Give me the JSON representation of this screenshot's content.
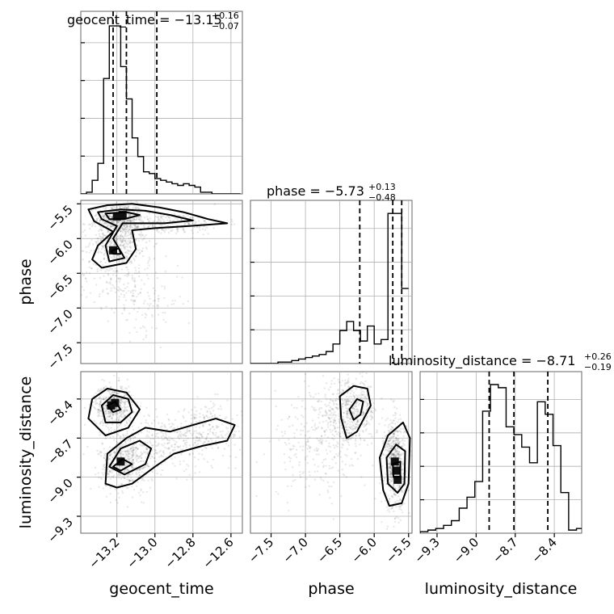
{
  "chart_data": {
    "type": "corner",
    "parameters": [
      "geocent_time",
      "phase",
      "luminosity_distance"
    ],
    "axes": {
      "geocent_time": {
        "label": "geocent_time",
        "range": [
          -13.39,
          -12.54
        ],
        "ticks": [
          -13.2,
          -13.0,
          -12.8,
          -12.6
        ],
        "tick_labels": [
          "−13.2",
          "−13.0",
          "−12.8",
          "−12.6"
        ]
      },
      "phase": {
        "label": "phase",
        "range": [
          -7.8,
          -5.45
        ],
        "ticks": [
          -7.5,
          -7.0,
          -6.5,
          -6.0,
          -5.5
        ],
        "tick_labels": [
          "−7.5",
          "−7.0",
          "−6.5",
          "−6.0",
          "−5.5"
        ]
      },
      "luminosity_distance": {
        "label": "luminosity_distance",
        "range": [
          -9.43,
          -8.19
        ],
        "ticks": [
          -9.3,
          -9.0,
          -8.7,
          -8.4
        ],
        "tick_labels": [
          "−9.3",
          "−9.0",
          "−8.7",
          "−8.4"
        ]
      }
    },
    "titles": [
      {
        "param": "geocent_time",
        "main": "geocent_time = −13.15",
        "plus": "+0.16",
        "minus": "−0.07"
      },
      {
        "param": "phase",
        "main": "phase = −5.73",
        "plus": "+0.13",
        "minus": "−0.48"
      },
      {
        "param": "luminosity_distance",
        "main": "luminosity_distance = −8.71",
        "plus": "+0.26",
        "minus": "−0.19"
      }
    ],
    "histograms": {
      "geocent_time": {
        "edges": [
          -13.39,
          -13.36,
          -13.33,
          -13.3,
          -13.27,
          -13.24,
          -13.21,
          -13.18,
          -13.15,
          -13.12,
          -13.09,
          -13.06,
          -13.03,
          -13.0,
          -12.97,
          -12.94,
          -12.91,
          -12.88,
          -12.85,
          -12.82,
          -12.79,
          -12.76,
          -12.73,
          -12.7,
          -12.67,
          -12.64,
          -12.61,
          -12.58,
          -12.55
        ],
        "counts": [
          0,
          1,
          8,
          18,
          68,
          99,
          99,
          75,
          56,
          33,
          22,
          13,
          12,
          9,
          8,
          7,
          6,
          5,
          6,
          5,
          4,
          1,
          1,
          0,
          0,
          0,
          0,
          0
        ],
        "quantiles": [
          -13.22,
          -13.15,
          -12.99
        ]
      },
      "phase": {
        "edges": [
          -7.8,
          -7.7,
          -7.6,
          -7.5,
          -7.4,
          -7.3,
          -7.2,
          -7.1,
          -7.0,
          -6.9,
          -6.8,
          -6.7,
          -6.6,
          -6.5,
          -6.4,
          -6.3,
          -6.2,
          -6.1,
          -6.0,
          -5.9,
          -5.8,
          -5.7,
          -5.6,
          -5.5
        ],
        "counts": [
          0,
          0,
          0,
          0,
          1,
          1,
          2,
          3,
          4,
          5,
          6,
          8,
          13,
          22,
          28,
          22,
          15,
          25,
          13,
          16,
          100,
          100,
          50
        ],
        "quantiles": [
          -6.21,
          -5.73,
          -5.6
        ]
      },
      "luminosity_distance": {
        "edges": [
          -9.43,
          -9.37,
          -9.31,
          -9.25,
          -9.19,
          -9.13,
          -9.07,
          -9.01,
          -8.95,
          -8.89,
          -8.83,
          -8.77,
          -8.71,
          -8.65,
          -8.59,
          -8.53,
          -8.47,
          -8.41,
          -8.35,
          -8.29,
          -8.23,
          -8.19
        ],
        "counts": [
          1,
          2,
          3,
          5,
          8,
          16,
          23,
          33,
          78,
          95,
          93,
          68,
          63,
          55,
          45,
          84,
          76,
          56,
          26,
          2,
          3
        ],
        "quantiles": [
          -8.9,
          -8.71,
          -8.45
        ]
      }
    },
    "densities": {
      "geocent_time__phase": {
        "clusters": [
          {
            "center": [
              -13.18,
              -5.7
            ],
            "spread": [
              0.06,
              0.1
            ],
            "weight": 0.35
          },
          {
            "center": [
              -13.2,
              -6.05
            ],
            "spread": [
              0.07,
              0.15
            ],
            "weight": 0.25
          },
          {
            "center": [
              -12.95,
              -5.78
            ],
            "spread": [
              0.16,
              0.08
            ],
            "weight": 0.2
          },
          {
            "center": [
              -13.2,
              -6.5
            ],
            "spread": [
              0.1,
              0.25
            ],
            "weight": 0.12
          },
          {
            "center": [
              -13.05,
              -6.9
            ],
            "spread": [
              0.1,
              0.25
            ],
            "weight": 0.08
          }
        ],
        "contours": [
          [
            [
              -13.35,
              -5.58
            ],
            [
              -13.25,
              -5.52
            ],
            [
              -13.12,
              -5.5
            ],
            [
              -12.98,
              -5.55
            ],
            [
              -12.85,
              -5.62
            ],
            [
              -12.72,
              -5.72
            ],
            [
              -12.62,
              -5.78
            ],
            [
              -12.82,
              -5.82
            ],
            [
              -13.0,
              -5.85
            ],
            [
              -13.12,
              -5.88
            ],
            [
              -13.1,
              -6.15
            ],
            [
              -13.15,
              -6.35
            ],
            [
              -13.28,
              -6.42
            ],
            [
              -13.33,
              -6.3
            ],
            [
              -13.3,
              -6.1
            ],
            [
              -13.22,
              -5.9
            ],
            [
              -13.32,
              -5.75
            ]
          ],
          [
            [
              -13.3,
              -5.62
            ],
            [
              -13.18,
              -5.58
            ],
            [
              -13.05,
              -5.6
            ],
            [
              -12.92,
              -5.66
            ],
            [
              -12.8,
              -5.74
            ],
            [
              -12.95,
              -5.78
            ],
            [
              -13.08,
              -5.78
            ],
            [
              -13.17,
              -5.78
            ],
            [
              -13.22,
              -6.0
            ],
            [
              -13.16,
              -6.28
            ],
            [
              -13.24,
              -6.33
            ],
            [
              -13.26,
              -6.1
            ],
            [
              -13.2,
              -5.82
            ],
            [
              -13.28,
              -5.72
            ]
          ],
          [
            [
              -13.26,
              -5.64
            ],
            [
              -13.15,
              -5.62
            ],
            [
              -13.08,
              -5.66
            ],
            [
              -13.16,
              -5.72
            ],
            [
              -13.24,
              -5.72
            ]
          ],
          [
            [
              -13.23,
              -6.18
            ],
            [
              -13.19,
              -6.14
            ],
            [
              -13.18,
              -6.22
            ],
            [
              -13.22,
              -6.22
            ]
          ]
        ],
        "dark_pixels": [
          [
            -13.2,
            -5.68
          ],
          [
            -13.17,
            -5.66
          ],
          [
            -13.22,
            -6.17
          ]
        ]
      },
      "geocent_time__luminosity_distance": {
        "clusters": [
          {
            "center": [
              -13.22,
              -8.45
            ],
            "spread": [
              0.05,
              0.08
            ],
            "weight": 0.3
          },
          {
            "center": [
              -13.15,
              -8.88
            ],
            "spread": [
              0.07,
              0.12
            ],
            "weight": 0.35
          },
          {
            "center": [
              -12.9,
              -8.72
            ],
            "spread": [
              0.18,
              0.12
            ],
            "weight": 0.25
          },
          {
            "center": [
              -12.7,
              -8.62
            ],
            "spread": [
              0.1,
              0.1
            ],
            "weight": 0.1
          }
        ],
        "contours": [
          [
            [
              -13.33,
              -8.4
            ],
            [
              -13.25,
              -8.32
            ],
            [
              -13.15,
              -8.35
            ],
            [
              -13.08,
              -8.48
            ],
            [
              -13.14,
              -8.62
            ],
            [
              -13.26,
              -8.68
            ],
            [
              -13.35,
              -8.55
            ]
          ],
          [
            [
              -13.28,
              -8.45
            ],
            [
              -13.22,
              -8.37
            ],
            [
              -13.14,
              -8.4
            ],
            [
              -13.12,
              -8.5
            ],
            [
              -13.18,
              -8.58
            ],
            [
              -13.26,
              -8.58
            ]
          ],
          [
            [
              -13.25,
              -8.45
            ],
            [
              -13.21,
              -8.42
            ],
            [
              -13.18,
              -8.48
            ],
            [
              -13.22,
              -8.5
            ]
          ],
          [
            [
              -13.26,
              -9.05
            ],
            [
              -13.25,
              -8.82
            ],
            [
              -13.15,
              -8.7
            ],
            [
              -13.05,
              -8.62
            ],
            [
              -12.92,
              -8.65
            ],
            [
              -12.8,
              -8.6
            ],
            [
              -12.68,
              -8.55
            ],
            [
              -12.58,
              -8.6
            ],
            [
              -12.62,
              -8.72
            ],
            [
              -12.75,
              -8.76
            ],
            [
              -12.9,
              -8.82
            ],
            [
              -13.0,
              -8.92
            ],
            [
              -13.12,
              -9.05
            ],
            [
              -13.2,
              -9.08
            ]
          ],
          [
            [
              -13.24,
              -8.92
            ],
            [
              -13.18,
              -8.78
            ],
            [
              -13.08,
              -8.72
            ],
            [
              -13.02,
              -8.78
            ],
            [
              -13.05,
              -8.9
            ],
            [
              -13.16,
              -8.98
            ]
          ],
          [
            [
              -13.22,
              -8.92
            ],
            [
              -13.17,
              -8.86
            ],
            [
              -13.12,
              -8.9
            ],
            [
              -13.18,
              -8.95
            ]
          ]
        ],
        "dark_pixels": [
          [
            -13.21,
            -8.43
          ],
          [
            -13.18,
            -8.88
          ],
          [
            -13.23,
            -8.45
          ]
        ]
      },
      "phase__luminosity_distance": {
        "clusters": [
          {
            "center": [
              -6.35,
              -8.5
            ],
            "spread": [
              0.2,
              0.12
            ],
            "weight": 0.35
          },
          {
            "center": [
              -5.7,
              -8.9
            ],
            "spread": [
              0.08,
              0.18
            ],
            "weight": 0.45
          },
          {
            "center": [
              -6.8,
              -8.75
            ],
            "spread": [
              0.35,
              0.2
            ],
            "weight": 0.2
          }
        ],
        "contours": [
          [
            [
              -6.5,
              -8.38
            ],
            [
              -6.3,
              -8.3
            ],
            [
              -6.1,
              -8.32
            ],
            [
              -6.05,
              -8.45
            ],
            [
              -6.25,
              -8.65
            ],
            [
              -6.4,
              -8.7
            ],
            [
              -6.48,
              -8.55
            ]
          ],
          [
            [
              -6.36,
              -8.48
            ],
            [
              -6.25,
              -8.4
            ],
            [
              -6.16,
              -8.42
            ],
            [
              -6.2,
              -8.52
            ],
            [
              -6.3,
              -8.56
            ]
          ],
          [
            [
              -5.87,
              -9.1
            ],
            [
              -5.92,
              -8.85
            ],
            [
              -5.8,
              -8.68
            ],
            [
              -5.58,
              -8.58
            ],
            [
              -5.48,
              -8.7
            ],
            [
              -5.5,
              -9.05
            ],
            [
              -5.6,
              -9.2
            ],
            [
              -5.78,
              -9.22
            ]
          ],
          [
            [
              -5.8,
              -9.05
            ],
            [
              -5.82,
              -8.85
            ],
            [
              -5.68,
              -8.75
            ],
            [
              -5.55,
              -8.8
            ],
            [
              -5.56,
              -9.05
            ],
            [
              -5.66,
              -9.12
            ]
          ],
          [
            [
              -5.72,
              -9.0
            ],
            [
              -5.73,
              -8.9
            ],
            [
              -5.62,
              -8.88
            ],
            [
              -5.62,
              -9.0
            ]
          ]
        ],
        "dark_pixels": [
          [
            -5.7,
            -8.88
          ],
          [
            -5.68,
            -8.95
          ],
          [
            -5.66,
            -9.02
          ]
        ]
      }
    }
  }
}
